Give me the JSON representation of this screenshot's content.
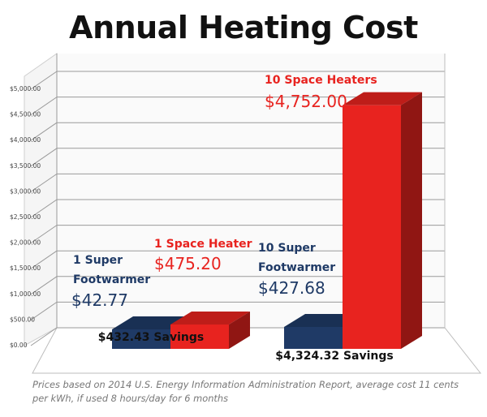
{
  "chart_data": {
    "type": "bar",
    "title": "Annual Heating Cost",
    "ylim": [
      0,
      5000
    ],
    "yticks": [
      "$0.00",
      "$500.00",
      "$1,000.00",
      "$1,500.00",
      "$2,000.00",
      "$2,500.00",
      "$3,000.00",
      "$3,500.00",
      "$4,000.00",
      "$4,500.00",
      "$5,000.00"
    ],
    "ytick_values": [
      0,
      500,
      1000,
      1500,
      2000,
      2500,
      3000,
      3500,
      4000,
      4500,
      5000
    ],
    "groups": [
      {
        "bars": [
          {
            "name": "1 Super Footwarmer",
            "value": 42.77,
            "value_label": "$42.77",
            "color": "#1f3a66",
            "label_color": "#1f3a66"
          },
          {
            "name": "1 Space Heater",
            "value": 475.2,
            "value_label": "$475.20",
            "color": "#e8231f",
            "label_color": "#e8231f"
          }
        ],
        "savings_label": "$432.43 Savings"
      },
      {
        "bars": [
          {
            "name": "10 Super Footwarmer",
            "value": 427.68,
            "value_label": "$427.68",
            "color": "#1f3a66",
            "label_color": "#1f3a66"
          },
          {
            "name": "10 Space Heaters",
            "value": 4752.0,
            "value_label": "$4,752.00",
            "color": "#e8231f",
            "label_color": "#e8231f"
          }
        ],
        "savings_label": "$4,324.32 Savings"
      }
    ],
    "grid": true
  },
  "footnote": "Prices based on 2014 U.S. Energy Information Administration Report, average cost 11 cents per kWh, if used 8 hours/day for 6 months"
}
